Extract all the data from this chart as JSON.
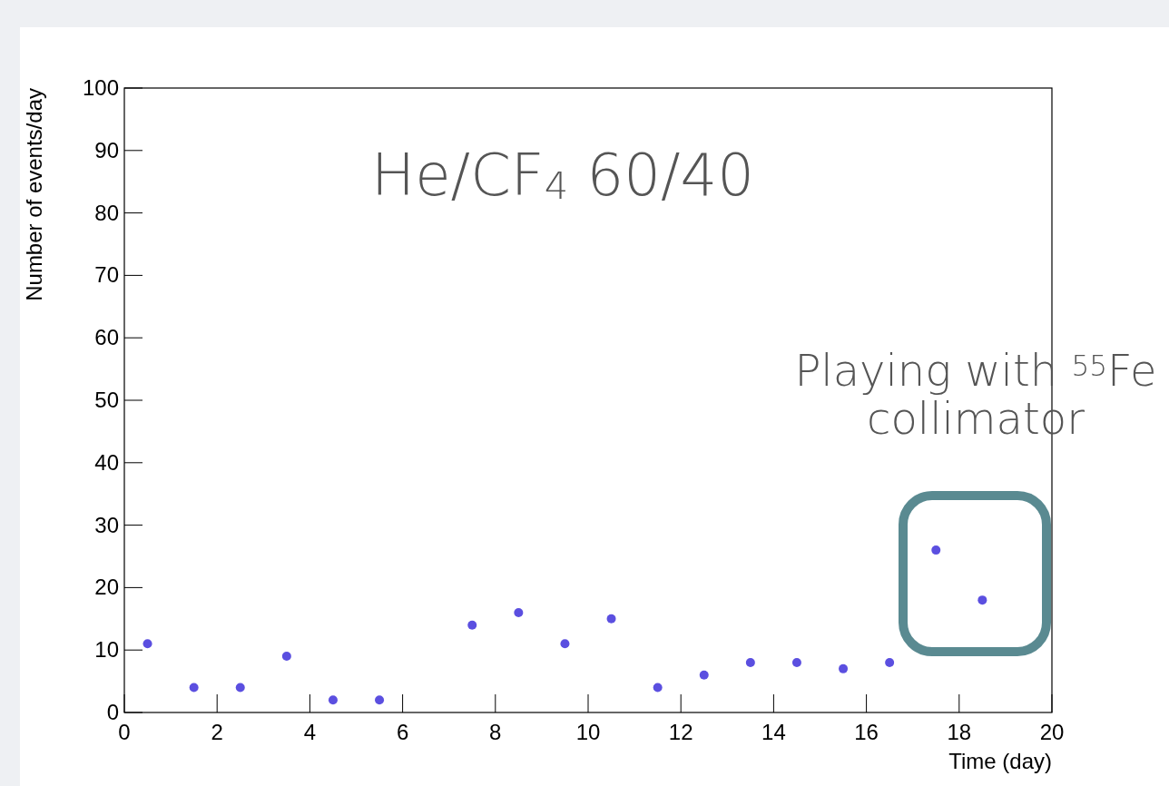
{
  "chart_data": {
    "type": "scatter",
    "xlabel": "Time (day)",
    "ylabel": "Number of events/day",
    "x": [
      0.5,
      1.5,
      2.5,
      3.5,
      4.5,
      5.5,
      7.5,
      8.5,
      9.5,
      10.5,
      11.5,
      12.5,
      13.5,
      14.5,
      15.5,
      16.5,
      17.5,
      18.5
    ],
    "series": [
      {
        "color": "#5b4fe0",
        "values": [
          11,
          4,
          4,
          9,
          2,
          2,
          14,
          16,
          11,
          15,
          4,
          6,
          8,
          8,
          7,
          8,
          26,
          18
        ]
      }
    ],
    "xlim": [
      0,
      20
    ],
    "ylim": [
      0,
      100
    ],
    "xticks": [
      0,
      2,
      4,
      6,
      8,
      10,
      12,
      14,
      16,
      18,
      20
    ],
    "yticks": [
      0,
      10,
      20,
      30,
      40,
      50,
      60,
      70,
      80,
      90,
      100
    ],
    "marker": "circle",
    "grid": false,
    "annotations": [
      "He/CF$_{4}$ 60/40",
      "Playing with $^{55}$Fe\ncollimator"
    ]
  }
}
